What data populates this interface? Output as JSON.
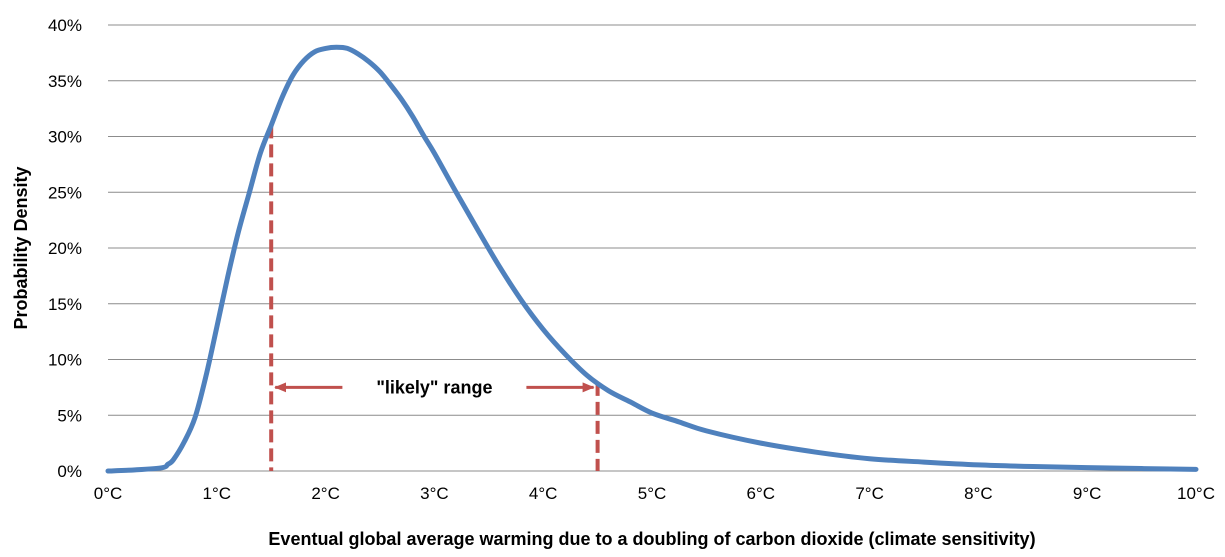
{
  "chart_data": {
    "type": "line",
    "title": "",
    "xlabel": "Eventual global average warming due to a doubling of carbon dioxide (climate sensitivity)",
    "ylabel": "Probability Density",
    "xlim": [
      0,
      10
    ],
    "ylim": [
      0,
      40
    ],
    "grid": "horizontal",
    "legend": "none",
    "x_ticks": [
      {
        "value": 0,
        "label": "0°C"
      },
      {
        "value": 1,
        "label": "1°C"
      },
      {
        "value": 2,
        "label": "2°C"
      },
      {
        "value": 3,
        "label": "3°C"
      },
      {
        "value": 4,
        "label": "4°C"
      },
      {
        "value": 5,
        "label": "5°C"
      },
      {
        "value": 6,
        "label": "6°C"
      },
      {
        "value": 7,
        "label": "7°C"
      },
      {
        "value": 8,
        "label": "8°C"
      },
      {
        "value": 9,
        "label": "9°C"
      },
      {
        "value": 10,
        "label": "10°C"
      }
    ],
    "y_ticks": [
      {
        "value": 0,
        "label": "0%"
      },
      {
        "value": 5,
        "label": "5%"
      },
      {
        "value": 10,
        "label": "10%"
      },
      {
        "value": 15,
        "label": "15%"
      },
      {
        "value": 20,
        "label": "20%"
      },
      {
        "value": 25,
        "label": "25%"
      },
      {
        "value": 30,
        "label": "30%"
      },
      {
        "value": 35,
        "label": "35%"
      },
      {
        "value": 40,
        "label": "40%"
      }
    ],
    "series": [
      {
        "color": "#4f81bd",
        "x": [
          0,
          0.25,
          0.5,
          0.55,
          0.6,
          0.7,
          0.8,
          0.9,
          1.0,
          1.1,
          1.2,
          1.3,
          1.4,
          1.5,
          1.6,
          1.7,
          1.8,
          1.9,
          2.0,
          2.1,
          2.2,
          2.3,
          2.4,
          2.5,
          2.6,
          2.7,
          2.8,
          2.9,
          3.0,
          3.2,
          3.4,
          3.6,
          3.8,
          4.0,
          4.2,
          4.4,
          4.6,
          4.8,
          5.0,
          5.25,
          5.5,
          6.0,
          6.5,
          7.0,
          7.5,
          8.0,
          8.5,
          9.0,
          9.5,
          10.0
        ],
        "y": [
          0,
          0.1,
          0.3,
          0.6,
          1.0,
          2.6,
          4.8,
          8.5,
          12.9,
          17.4,
          21.5,
          25.0,
          28.5,
          31.0,
          33.5,
          35.5,
          36.8,
          37.6,
          37.9,
          38.0,
          37.9,
          37.4,
          36.7,
          35.8,
          34.6,
          33.3,
          31.8,
          30.1,
          28.5,
          25.0,
          21.6,
          18.3,
          15.3,
          12.7,
          10.5,
          8.6,
          7.2,
          6.2,
          5.2,
          4.4,
          3.6,
          2.5,
          1.7,
          1.1,
          0.8,
          0.55,
          0.4,
          0.3,
          0.22,
          0.15
        ]
      }
    ],
    "annotations": {
      "likely_range": {
        "label": "\"likely\" range",
        "x_start": 1.5,
        "x_end": 4.5,
        "y_level": 7.5,
        "line_color": "#c0504d"
      }
    }
  }
}
